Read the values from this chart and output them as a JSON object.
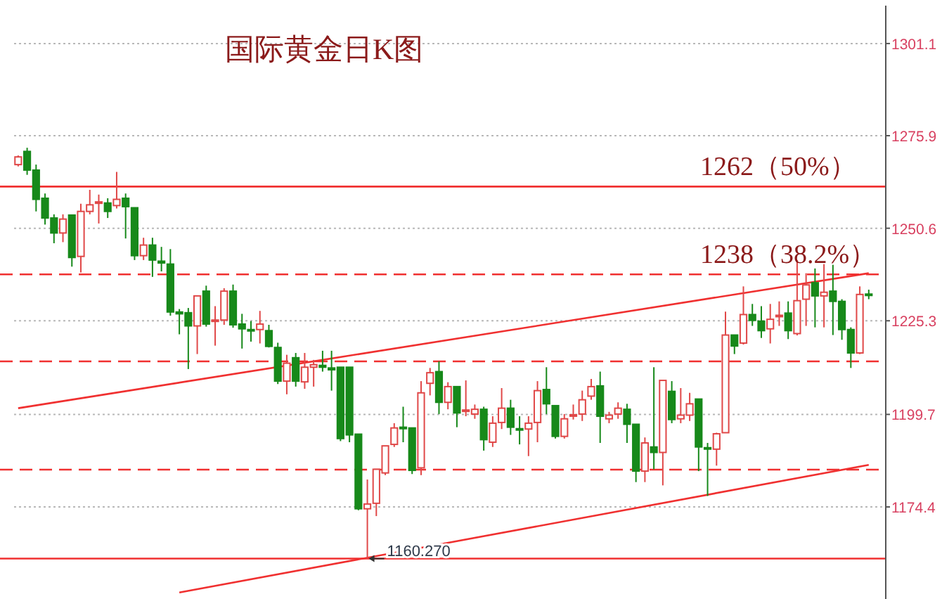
{
  "chart_data": {
    "type": "candlestick",
    "title": "国际黄金日K图",
    "categories": [
      null,
      null,
      null,
      null,
      null,
      null,
      null,
      null,
      null,
      null,
      null,
      null,
      null,
      null,
      null,
      null,
      null,
      null,
      null,
      null,
      null,
      null,
      null,
      null,
      null,
      null,
      null,
      null,
      null,
      null,
      null,
      null,
      null,
      null,
      null,
      null,
      null,
      null,
      null,
      null,
      null,
      null,
      null,
      null,
      null,
      null,
      null,
      null,
      null,
      null,
      null,
      null,
      null,
      null,
      null,
      null,
      null,
      null,
      null,
      null,
      null,
      null,
      null,
      null,
      null,
      null,
      null,
      null,
      null,
      null,
      null,
      null,
      null,
      null,
      null,
      null,
      null,
      null,
      null,
      null,
      null,
      null,
      null,
      null,
      null,
      null,
      null,
      null,
      null,
      null,
      null,
      null,
      null,
      null,
      null,
      null
    ],
    "ohlc": [
      [
        1268,
        1270.5,
        1267.5,
        1270.1
      ],
      [
        1271.6,
        1272.6,
        1265.2,
        1266.5
      ],
      [
        1266.5,
        1268,
        1255.2,
        1258.5
      ],
      [
        1258.8,
        1260.1,
        1251.6,
        1253.4
      ],
      [
        1253.4,
        1254.4,
        1246.5,
        1249.3
      ],
      [
        1249.3,
        1254.4,
        1246.8,
        1253.1
      ],
      [
        1254.2,
        1254.2,
        1240.1,
        1242.6
      ],
      [
        1242.9,
        1257.3,
        1238.5,
        1255.2
      ],
      [
        1255.2,
        1261.1,
        1254.4,
        1257
      ],
      [
        1257.7,
        1259.8,
        1251.9,
        1257.8
      ],
      [
        1257.5,
        1258.8,
        1253.4,
        1255.2
      ],
      [
        1256.8,
        1266,
        1256,
        1258.5
      ],
      [
        1258.8,
        1260.1,
        1247.8,
        1256.5
      ],
      [
        1256.2,
        1256.2,
        1241.9,
        1243.1
      ],
      [
        1243.1,
        1248,
        1241.9,
        1246
      ],
      [
        1246,
        1248,
        1237.3,
        1241.9
      ],
      [
        1241.6,
        1245.5,
        1238.8,
        1241.1
      ],
      [
        1240.8,
        1244.9,
        1226.7,
        1227.7
      ],
      [
        1227.7,
        1228.5,
        1221.6,
        1227.2
      ],
      [
        1227.5,
        1228.8,
        1212.1,
        1223.9
      ],
      [
        1223.9,
        1232.1,
        1216.2,
        1232.1
      ],
      [
        1233.4,
        1234.9,
        1223.7,
        1224.4
      ],
      [
        1225.3,
        1229.3,
        1218.5,
        1225.5
      ],
      [
        1225.5,
        1234.2,
        1224.2,
        1233.4
      ],
      [
        1233.4,
        1235.2,
        1223.4,
        1224.2
      ],
      [
        1224.4,
        1227.2,
        1217.7,
        1223.1
      ],
      [
        1222.9,
        1225.2,
        1219.6,
        1222.6
      ],
      [
        1222.9,
        1228,
        1219.1,
        1224.4
      ],
      [
        1222.6,
        1224.2,
        1218,
        1218.3
      ],
      [
        1218,
        1219.3,
        1208,
        1208.8
      ],
      [
        1208.8,
        1216,
        1205.2,
        1213.7
      ],
      [
        1215.2,
        1216.5,
        1207.3,
        1208.8
      ],
      [
        1208.6,
        1216.5,
        1206.7,
        1212.6
      ],
      [
        1212.6,
        1214.6,
        1207.3,
        1213.3
      ],
      [
        1213.1,
        1217.1,
        1211.4,
        1212.6
      ],
      [
        1212.4,
        1217.1,
        1206.2,
        1211.9
      ],
      [
        1212.6,
        1212.6,
        1192.4,
        1193.1
      ],
      [
        1212.6,
        1212.6,
        1192.1,
        1194.1
      ],
      [
        1194.3,
        1194.3,
        1173.5,
        1173.9
      ],
      [
        1173.9,
        1181.9,
        1160.27,
        1175.2
      ],
      [
        1175.4,
        1184.7,
        1171.9,
        1184.7
      ],
      [
        1183.7,
        1191.1,
        1183.1,
        1191.1
      ],
      [
        1191.5,
        1197.3,
        1190.8,
        1196
      ],
      [
        1196.2,
        1201.8,
        1192.1,
        1195.8
      ],
      [
        1196,
        1196,
        1183.4,
        1184.4
      ],
      [
        1185.1,
        1208.8,
        1183.1,
        1205.6
      ],
      [
        1208.2,
        1212.4,
        1204.9,
        1211.1
      ],
      [
        1211.4,
        1214.2,
        1199.8,
        1203
      ],
      [
        1203,
        1208.5,
        1201.1,
        1207.3
      ],
      [
        1207.3,
        1207.3,
        1196.2,
        1200.1
      ],
      [
        1200.8,
        1209,
        1199.2,
        1200.9
      ],
      [
        1199.8,
        1202.4,
        1198.5,
        1201.1
      ],
      [
        1201.1,
        1201.8,
        1189.8,
        1192.8
      ],
      [
        1192.1,
        1199.2,
        1190.8,
        1197.3
      ],
      [
        1197.5,
        1206.9,
        1195.7,
        1201.4
      ],
      [
        1201.4,
        1203.7,
        1194.1,
        1196.2
      ],
      [
        1195.8,
        1199.2,
        1191.5,
        1195.7
      ],
      [
        1195.7,
        1199.2,
        1188.3,
        1197.3
      ],
      [
        1197.5,
        1208.8,
        1192.1,
        1206.2
      ],
      [
        1206.5,
        1212.6,
        1199.8,
        1202.6
      ],
      [
        1202.1,
        1202.1,
        1193.1,
        1193.7
      ],
      [
        1193.7,
        1199.8,
        1193.1,
        1198.5
      ],
      [
        1199.4,
        1202.4,
        1198.3,
        1199.6
      ],
      [
        1199.8,
        1206.2,
        1197.9,
        1203.7
      ],
      [
        1204.7,
        1209.4,
        1203.7,
        1207.3
      ],
      [
        1207.5,
        1211.4,
        1191.9,
        1199.2
      ],
      [
        1198.5,
        1200.4,
        1197.3,
        1199.5
      ],
      [
        1199.8,
        1203,
        1198.5,
        1201.4
      ],
      [
        1201.1,
        1202.6,
        1191.9,
        1197
      ],
      [
        1197,
        1197,
        1181.2,
        1184.2
      ],
      [
        1184.2,
        1193.4,
        1181.2,
        1191.9
      ],
      [
        1190.8,
        1212.6,
        1184.7,
        1189.3
      ],
      [
        1189.3,
        1209,
        1180.3,
        1209
      ],
      [
        1206,
        1208.8,
        1197.3,
        1198.3
      ],
      [
        1198.5,
        1206.9,
        1197.3,
        1199.5
      ],
      [
        1199.5,
        1205.6,
        1197.9,
        1202.6
      ],
      [
        1203.9,
        1203.9,
        1184.2,
        1190.8
      ],
      [
        1190.6,
        1191.9,
        1177.4,
        1190.3
      ],
      [
        1190.2,
        1194.7,
        1185.7,
        1194.4
      ],
      [
        1194.7,
        1227.8,
        1194.7,
        1221.4
      ],
      [
        1221.4,
        1221.4,
        1216.2,
        1218.4
      ],
      [
        1219.2,
        1234.7,
        1218.8,
        1227
      ],
      [
        1227,
        1229.9,
        1223.9,
        1225.4
      ],
      [
        1225.2,
        1229.3,
        1220.6,
        1222.6
      ],
      [
        1223.1,
        1229.9,
        1219.1,
        1225.7
      ],
      [
        1226.7,
        1230.6,
        1223.9,
        1226.8
      ],
      [
        1227.4,
        1230.6,
        1220.3,
        1222.6
      ],
      [
        1221.8,
        1241.9,
        1221.3,
        1230.8
      ],
      [
        1231.2,
        1238.3,
        1223.9,
        1235.1
      ],
      [
        1235.7,
        1239.6,
        1223.5,
        1232.1
      ],
      [
        1232.1,
        1240.8,
        1223.5,
        1233.1
      ],
      [
        1233.4,
        1240.6,
        1221.4,
        1230.6
      ],
      [
        1230.6,
        1231.2,
        1220.1,
        1222.9
      ],
      [
        1222.9,
        1223.5,
        1212.4,
        1216.5
      ],
      [
        1216.5,
        1234.7,
        1216.2,
        1232.5
      ],
      [
        1232.6,
        1233.8,
        1231.2,
        1232.3
      ]
    ],
    "series": [
      {
        "type": "line",
        "color": "#f03030",
        "values": [
          1201.4,
          null,
          null,
          null,
          null,
          null,
          null,
          null,
          null,
          null,
          null,
          null,
          null,
          null,
          null,
          null,
          null,
          null,
          null,
          null,
          null,
          null,
          null,
          null,
          null,
          null,
          null,
          null,
          null,
          null,
          null,
          null,
          null,
          null,
          null,
          null,
          null,
          null,
          null,
          null,
          null,
          null,
          null,
          null,
          null,
          null,
          null,
          null,
          null,
          null,
          null,
          null,
          null,
          null,
          null,
          null,
          null,
          null,
          null,
          null,
          null,
          null,
          null,
          null,
          null,
          null,
          null,
          null,
          null,
          null,
          null,
          null,
          null,
          null,
          null,
          null,
          null,
          null,
          null,
          null,
          null,
          null,
          null,
          null,
          null,
          null,
          null,
          null,
          null,
          null,
          null,
          null,
          null,
          null,
          null,
          1238.3
        ]
      },
      {
        "type": "line",
        "color": "#f03030",
        "values": [
          null,
          null,
          null,
          null,
          null,
          null,
          null,
          null,
          null,
          null,
          null,
          null,
          null,
          null,
          null,
          null,
          null,
          null,
          1151,
          null,
          null,
          null,
          null,
          null,
          null,
          null,
          null,
          null,
          null,
          null,
          null,
          null,
          null,
          null,
          null,
          null,
          null,
          null,
          null,
          null,
          null,
          null,
          null,
          null,
          null,
          null,
          null,
          null,
          null,
          null,
          null,
          null,
          null,
          null,
          null,
          null,
          null,
          null,
          null,
          null,
          null,
          null,
          null,
          null,
          null,
          null,
          null,
          null,
          null,
          null,
          null,
          null,
          null,
          null,
          null,
          null,
          null,
          null,
          null,
          null,
          null,
          null,
          null,
          null,
          null,
          null,
          null,
          null,
          null,
          null,
          null,
          null,
          null,
          null,
          null,
          1185.9
        ]
      }
    ],
    "ylim": [
      1150,
      1313
    ],
    "yticks": [
      1174.4,
      1199.7,
      1225.3,
      1250.6,
      1275.9,
      1301.1
    ],
    "grid": "y",
    "tick_labels": "y",
    "ref_lines": [
      {
        "axis": "y",
        "value": 1262,
        "label": "1262（50%）",
        "color": "#f03030",
        "line_style": "solid"
      },
      {
        "axis": "y",
        "value": 1238,
        "label": "1238（38.2%）",
        "color": "#f03030",
        "line_style": "dashed"
      },
      {
        "axis": "y",
        "value": 1214.2,
        "color": "#f03030",
        "line_style": "dashed"
      },
      {
        "axis": "y",
        "value": 1184.6,
        "color": "#f03030",
        "line_style": "dashed"
      },
      {
        "axis": "y",
        "value": 1160.27,
        "color": "#f03030",
        "line_style": "solid"
      }
    ],
    "annotations": [
      {
        "text": "1160.270",
        "y": 1160.27
      }
    ]
  }
}
